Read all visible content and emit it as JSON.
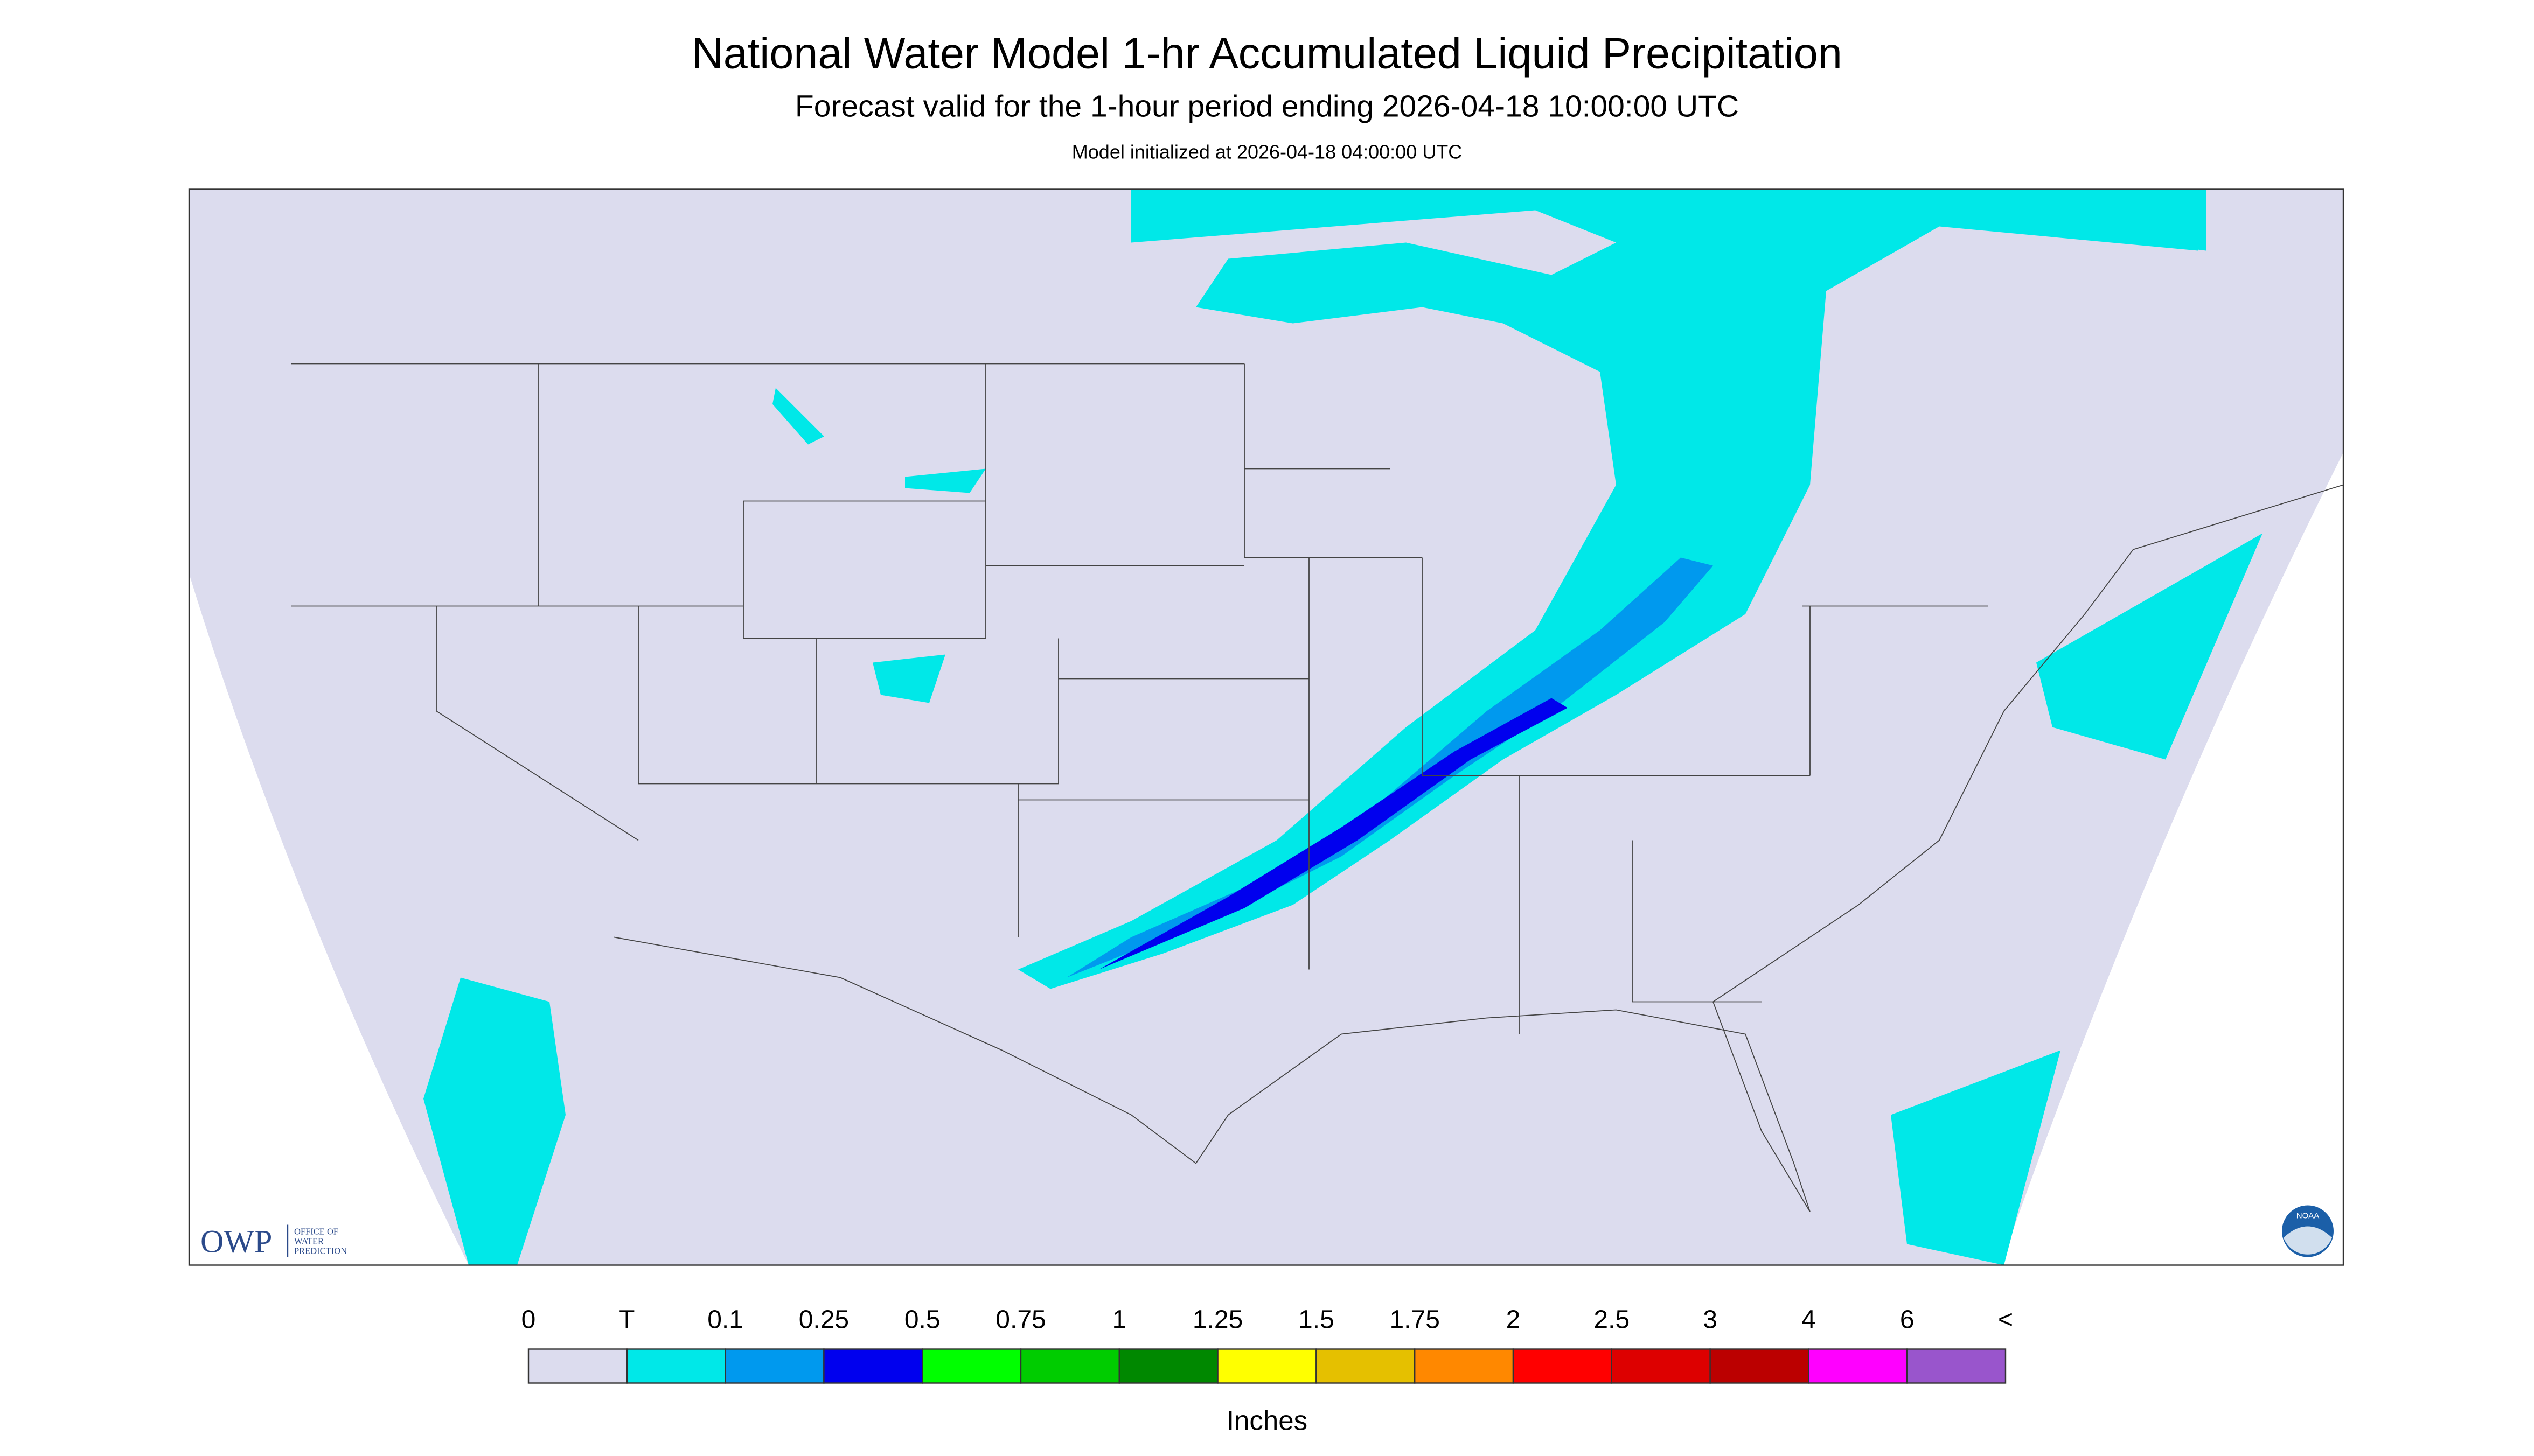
{
  "header": {
    "title": "National Water Model 1-hr Accumulated Liquid Precipitation",
    "subtitle": "Forecast valid for the 1-hour period ending 2026-04-18 10:00:00 UTC",
    "init": "Model initialized at 2026-04-18 04:00:00 UTC"
  },
  "logos": {
    "owp": "OWP",
    "owp_sub": [
      "OFFICE OF",
      "WATER",
      "PREDICTION"
    ],
    "noaa": "NOAA"
  },
  "legend": {
    "labels": [
      "0",
      "T",
      "0.1",
      "0.25",
      "0.5",
      "0.75",
      "1",
      "1.25",
      "1.5",
      "1.75",
      "2",
      "2.5",
      "3",
      "4",
      "6",
      "<"
    ],
    "colors": [
      "#dcdcee",
      "#00e8e8",
      "#0099ee",
      "#0000ee",
      "#00ff00",
      "#00cc00",
      "#008800",
      "#ffff00",
      "#e5c000",
      "#ff8800",
      "#ff0000",
      "#dd0000",
      "#bb0000",
      "#ff00ff",
      "#9955cc"
    ],
    "units": "Inches"
  }
}
